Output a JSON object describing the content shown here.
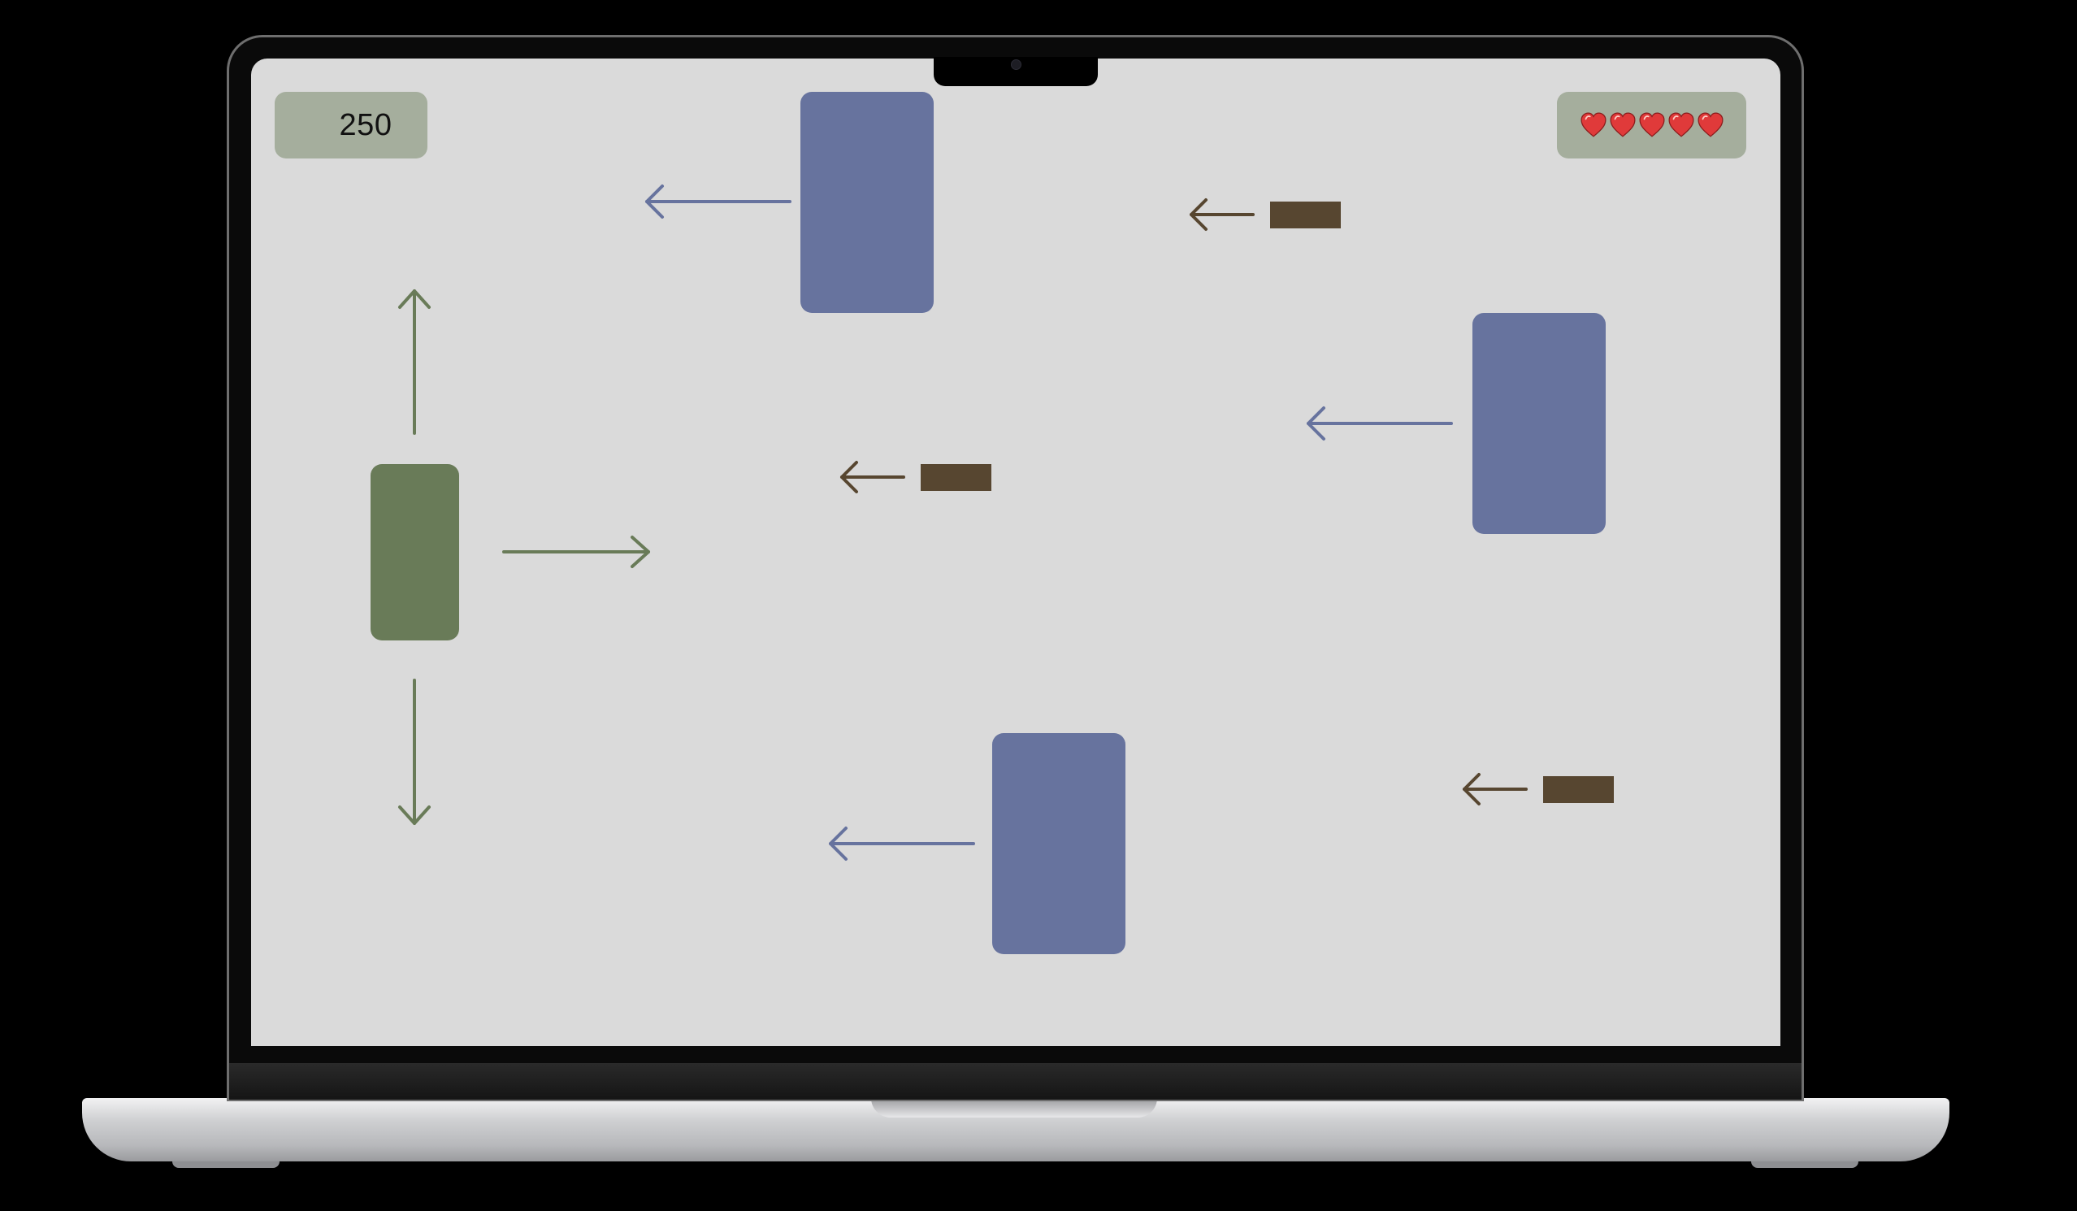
{
  "hud": {
    "score": "250",
    "lives": 5,
    "life_icon": "heart-icon"
  },
  "colors": {
    "screen_bg": "#dadada",
    "hud_bg": "#a5ae9d",
    "player": "#697b58",
    "enemy": "#67739e",
    "bullet": "#574630",
    "heart": "#e03a3a"
  },
  "entities": {
    "player": {
      "type": "player",
      "controls": [
        "up",
        "right",
        "down"
      ]
    },
    "enemies": [
      {
        "type": "enemy",
        "direction": "left"
      },
      {
        "type": "enemy",
        "direction": "left"
      },
      {
        "type": "enemy",
        "direction": "left"
      }
    ],
    "bullets": [
      {
        "type": "bullet",
        "direction": "left"
      },
      {
        "type": "bullet",
        "direction": "left"
      },
      {
        "type": "bullet",
        "direction": "left"
      }
    ]
  }
}
